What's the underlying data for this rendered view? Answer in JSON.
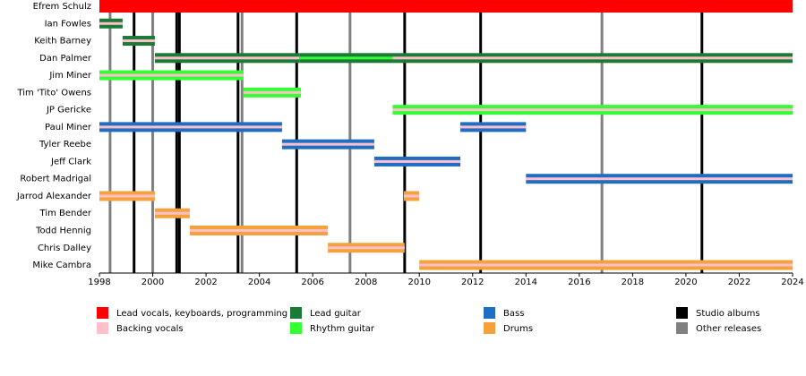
{
  "chart_data": {
    "type": "timeline",
    "xlim": [
      1998,
      2024
    ],
    "xticks": [
      1998,
      2000,
      2002,
      2004,
      2006,
      2008,
      2010,
      2012,
      2014,
      2016,
      2018,
      2020,
      2022,
      2024
    ],
    "roles": [
      {
        "name": "Lead vocals, keyboards, programming",
        "color": "#ff0000"
      },
      {
        "name": "Backing vocals",
        "color": "#ffc0cb"
      },
      {
        "name": "Lead guitar",
        "color": "#1a7a36"
      },
      {
        "name": "Rhythm guitar",
        "color": "#33ff33"
      },
      {
        "name": "Bass",
        "color": "#1f6ec4"
      },
      {
        "name": "Drums",
        "color": "#f5a23c"
      }
    ],
    "releases": [
      {
        "name": "Studio albums",
        "color": "#000000",
        "years": [
          1999.3,
          2000.9,
          2001.0,
          2003.2,
          2005.4,
          2009.45,
          2012.3,
          2020.6
        ]
      },
      {
        "name": "Other releases",
        "color": "#808080",
        "years": [
          1998.4,
          2000.0,
          2003.35,
          2007.4,
          2016.85
        ]
      }
    ],
    "rows": [
      {
        "name": "Efrem Schulz",
        "spans": [
          {
            "roles": [
              "Lead vocals, keyboards, programming"
            ],
            "start": 1998,
            "end": 2024
          }
        ]
      },
      {
        "name": "Ian Fowles",
        "spans": [
          {
            "roles": [
              "Lead guitar",
              "Backing vocals"
            ],
            "start": 1998,
            "end": 1998.87
          }
        ]
      },
      {
        "name": "Keith Barney",
        "spans": [
          {
            "roles": [
              "Lead guitar",
              "Backing vocals"
            ],
            "start": 1998.87,
            "end": 2000.08
          }
        ]
      },
      {
        "name": "Dan Palmer",
        "spans": [
          {
            "roles": [
              "Lead guitar",
              "Backing vocals"
            ],
            "start": 2000.08,
            "end": 2005.5
          },
          {
            "roles": [
              "Lead guitar",
              "Rhythm guitar"
            ],
            "start": 2005.5,
            "end": 2009.0
          },
          {
            "roles": [
              "Lead guitar",
              "Backing vocals"
            ],
            "start": 2009.0,
            "end": 2024
          }
        ]
      },
      {
        "name": "Jim Miner",
        "spans": [
          {
            "roles": [
              "Rhythm guitar",
              "Backing vocals"
            ],
            "start": 1998,
            "end": 2003.4
          }
        ]
      },
      {
        "name": "Tim 'Tito' Owens",
        "spans": [
          {
            "roles": [
              "Rhythm guitar",
              "Backing vocals"
            ],
            "start": 2003.4,
            "end": 2005.56
          }
        ]
      },
      {
        "name": "JP Gericke",
        "spans": [
          {
            "roles": [
              "Rhythm guitar",
              "Backing vocals"
            ],
            "start": 2009.0,
            "end": 2024
          }
        ]
      },
      {
        "name": "Paul Miner",
        "spans": [
          {
            "roles": [
              "Bass",
              "Backing vocals"
            ],
            "start": 1998,
            "end": 2004.85
          },
          {
            "roles": [
              "Bass",
              "Backing vocals"
            ],
            "start": 2011.54,
            "end": 2014.0
          }
        ]
      },
      {
        "name": "Tyler Reebe",
        "spans": [
          {
            "roles": [
              "Bass",
              "Backing vocals"
            ],
            "start": 2004.85,
            "end": 2008.31
          }
        ]
      },
      {
        "name": "Jeff Clark",
        "spans": [
          {
            "roles": [
              "Bass",
              "Backing vocals"
            ],
            "start": 2008.31,
            "end": 2011.54
          }
        ]
      },
      {
        "name": "Robert Madrigal",
        "spans": [
          {
            "roles": [
              "Bass",
              "Backing vocals"
            ],
            "start": 2014.0,
            "end": 2024
          }
        ]
      },
      {
        "name": "Jarrod Alexander",
        "spans": [
          {
            "roles": [
              "Drums",
              "Backing vocals"
            ],
            "start": 1998,
            "end": 2000.08
          },
          {
            "roles": [
              "Drums",
              "Backing vocals"
            ],
            "start": 2009.42,
            "end": 2010.0
          }
        ]
      },
      {
        "name": "Tim Bender",
        "spans": [
          {
            "roles": [
              "Drums",
              "Backing vocals"
            ],
            "start": 2000.08,
            "end": 2001.39
          }
        ]
      },
      {
        "name": "Todd Hennig",
        "spans": [
          {
            "roles": [
              "Drums",
              "Backing vocals"
            ],
            "start": 2001.39,
            "end": 2006.57
          }
        ]
      },
      {
        "name": "Chris Dalley",
        "spans": [
          {
            "roles": [
              "Drums",
              "Backing vocals"
            ],
            "start": 2006.57,
            "end": 2009.45
          }
        ]
      },
      {
        "name": "Mike Cambra",
        "spans": [
          {
            "roles": [
              "Drums",
              "Backing vocals"
            ],
            "start": 2010.0,
            "end": 2024
          }
        ]
      }
    ]
  }
}
